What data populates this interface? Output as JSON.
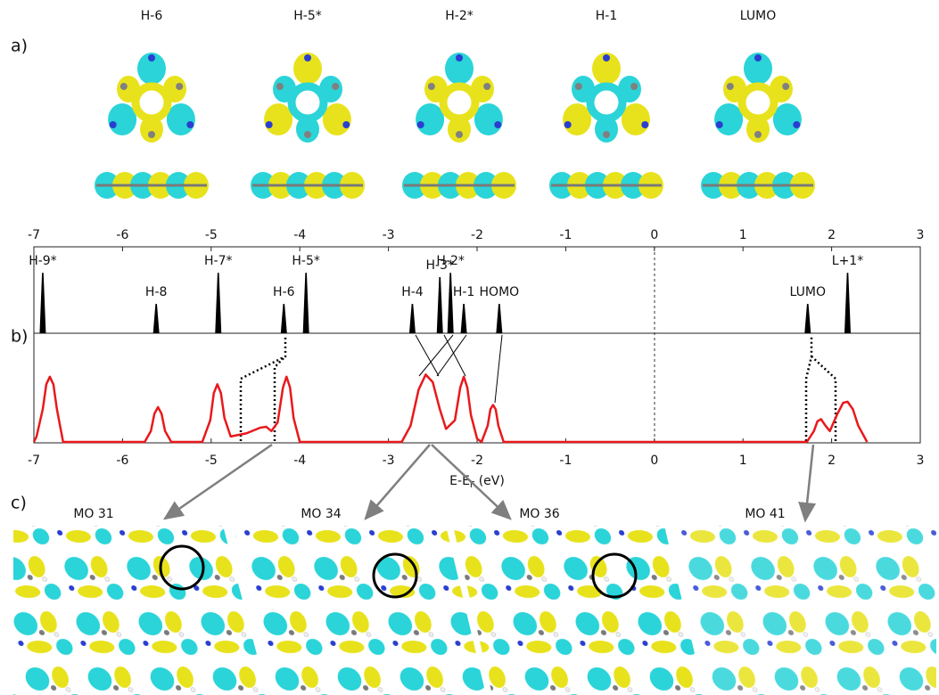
{
  "panel_labels": [
    "a)",
    "b)",
    "c)"
  ],
  "orbital_labels": [
    "H-6",
    "H-5*",
    "H-2*",
    "H-1",
    "LUMO"
  ],
  "mo_labels": [
    "MO 31",
    "MO 34",
    "MO 36",
    "MO 41"
  ],
  "chart_data": [
    {
      "type": "levels",
      "x": [
        -6.9,
        -5.62,
        -4.92,
        -4.18,
        -3.93,
        -2.73,
        -2.42,
        -2.3,
        -2.15,
        -1.75,
        1.73,
        2.18
      ],
      "labels": [
        "H-9*",
        "H-8",
        "H-7*",
        "H-6",
        "H-5*",
        "H-4",
        "H-3*",
        "H-2*",
        "H-1",
        "HOMO",
        "LUMO",
        "L+1*"
      ],
      "values": [
        0.7,
        0.34,
        0.7,
        0.34,
        0.7,
        0.34,
        0.65,
        0.7,
        0.34,
        0.34,
        0.34,
        0.7
      ],
      "color": "#000000",
      "xlim": [
        -7,
        3
      ],
      "xticks": [
        -7,
        -6,
        -5,
        -4,
        -3,
        -2,
        -1,
        0,
        1,
        2,
        3
      ],
      "ylim": [
        0,
        1
      ]
    },
    {
      "type": "line",
      "xlabel": "E-E",
      "xlabel_subscript": "F",
      "xlabel_unit": "(eV)",
      "color": "#e8191c",
      "x": [
        -7,
        -6.97,
        -6.9,
        -6.86,
        -6.82,
        -6.78,
        -6.74,
        -6.67,
        -5.75,
        -5.68,
        -5.64,
        -5.6,
        -5.56,
        -5.52,
        -5.45,
        -5.1,
        -5.01,
        -4.97,
        -4.93,
        -4.89,
        -4.85,
        -4.78,
        -4.6,
        -4.45,
        -4.38,
        -4.32,
        -4.25,
        -4.19,
        -4.15,
        -4.11,
        -4.07,
        -4.0,
        -2.85,
        -2.75,
        -2.66,
        -2.58,
        -2.5,
        -2.42,
        -2.35,
        -2.25,
        -2.19,
        -2.15,
        -2.11,
        -2.07,
        -2.0,
        -1.95,
        -1.88,
        -1.85,
        -1.82,
        -1.79,
        -1.76,
        -1.7,
        1.72,
        1.8,
        1.84,
        1.88,
        1.93,
        1.98,
        2.06,
        2.13,
        2.18,
        2.24,
        2.3,
        2.4
      ],
      "values": [
        0,
        0.05,
        0.3,
        0.53,
        0.6,
        0.53,
        0.3,
        0,
        0,
        0.1,
        0.26,
        0.32,
        0.26,
        0.1,
        0,
        0,
        0.2,
        0.45,
        0.53,
        0.45,
        0.22,
        0.05,
        0.08,
        0.13,
        0.14,
        0.1,
        0.18,
        0.5,
        0.6,
        0.5,
        0.22,
        0,
        0,
        0.15,
        0.48,
        0.62,
        0.55,
        0.3,
        0.12,
        0.2,
        0.5,
        0.6,
        0.5,
        0.25,
        0.03,
        0,
        0.15,
        0.3,
        0.34,
        0.3,
        0.15,
        0,
        0,
        0.1,
        0.19,
        0.21,
        0.15,
        0.1,
        0.25,
        0.36,
        0.37,
        0.3,
        0.15,
        0
      ],
      "xlim": [
        -7,
        3
      ],
      "xticks": [
        -7,
        -6,
        -5,
        -4,
        -3,
        -2,
        -1,
        0,
        1,
        2,
        3
      ],
      "ylim": [
        0,
        1
      ]
    }
  ]
}
